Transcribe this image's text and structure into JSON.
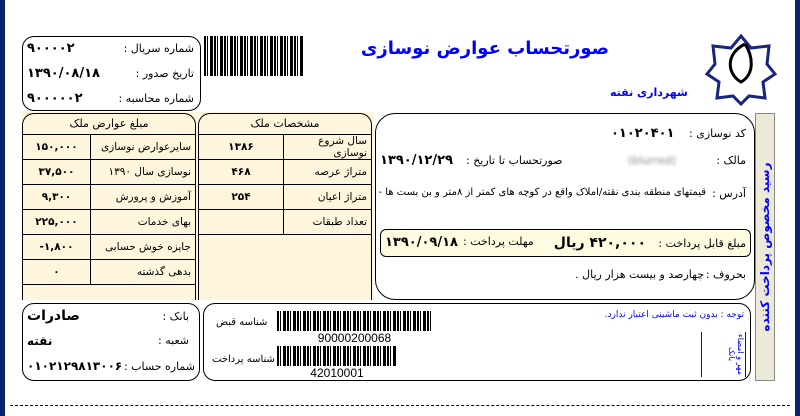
{
  "header": {
    "title": "صورتحساب عوارض نوسازی",
    "municipality": "شهرداری نقته",
    "logo_text": "شهرداری نقته"
  },
  "info": {
    "serial_label": "شماره سریال :",
    "serial": "۹۰۰۰۰۲",
    "issue_date_label": "تاریخ صدور :",
    "issue_date": "۱۳۹۰/۰۸/۱۸",
    "account_no_label": "شماره محاسبه :",
    "account_no": "۹۰۰۰۰۰۲"
  },
  "fees": {
    "title": "مبلغ عوارض ملک",
    "rows": [
      {
        "label": "سایرعوارض نوسازی",
        "value": "۱۵۰,۰۰۰"
      },
      {
        "label": "نوسازی سال ۱۳۹۰",
        "value": "۳۷,۵۰۰"
      },
      {
        "label": "آموزش و پرورش",
        "value": "۹,۳۰۰"
      },
      {
        "label": "بهای خدمات",
        "value": "۲۲۵,۰۰۰"
      },
      {
        "label": "جایزه خوش حسابی",
        "value": "۱,۸۰۰-"
      },
      {
        "label": "بدهی گذشته",
        "value": "۰"
      }
    ]
  },
  "property": {
    "title": "مشخصات ملک",
    "rows": [
      {
        "label": "سال شروع نوسازی",
        "value": "۱۳۸۶"
      },
      {
        "label": "متراژ عرصه",
        "value": "۴۶۸"
      },
      {
        "label": "متراژ اعیان",
        "value": "۲۵۴"
      },
      {
        "label": "تعداد طبقات",
        "value": ""
      }
    ]
  },
  "details": {
    "code_label": "کد نوسازی :",
    "code": "۰۱۰۲۰۴۰۱",
    "owner_label": "مالک :",
    "owner": "(blurred)",
    "until_label": "صورتحساب تا تاریخ :",
    "until": "۱۳۹۰/۱۲/۲۹",
    "address_label": "آدرس :",
    "address": "قیمتهای منطقه بندی نقته/املاک واقع در کوچه های کمتر از ۸متر و بن بست ها -",
    "amount_label": "مبلغ قابل پرداخت :",
    "amount": "۴۲۰,۰۰۰ ریال",
    "deadline_label": "مهلت پرداخت :",
    "deadline": "۱۳۹۰/۰۹/۱۸",
    "words_label": "بحروف :",
    "words": "چهارصد و بیست هزار ریال ."
  },
  "side_strip": "رسید مخصوص پرداخت کننده",
  "bank": {
    "bank_label": "بانک :",
    "bank": "صادرات",
    "branch_label": "شعبه :",
    "branch": "نقته",
    "account_label": "شماره حساب :",
    "account": "۰۱۰۲۱۲۹۸۱۳۰۰۶"
  },
  "payment": {
    "bill_id_label": "شناسه قبض",
    "bill_id": "90000200068",
    "pay_id_label": "شناسه پرداخت",
    "pay_id": "42010001",
    "note": "توجه : بدون ثبت ماشینی اعتبار ندارد.",
    "stamp": "مهر و امضاء بانک"
  },
  "colors": {
    "accent": "#0000ff",
    "frame": "#0a246a",
    "panel": "#fdf6dc",
    "pay_box": "#fffbe0"
  }
}
